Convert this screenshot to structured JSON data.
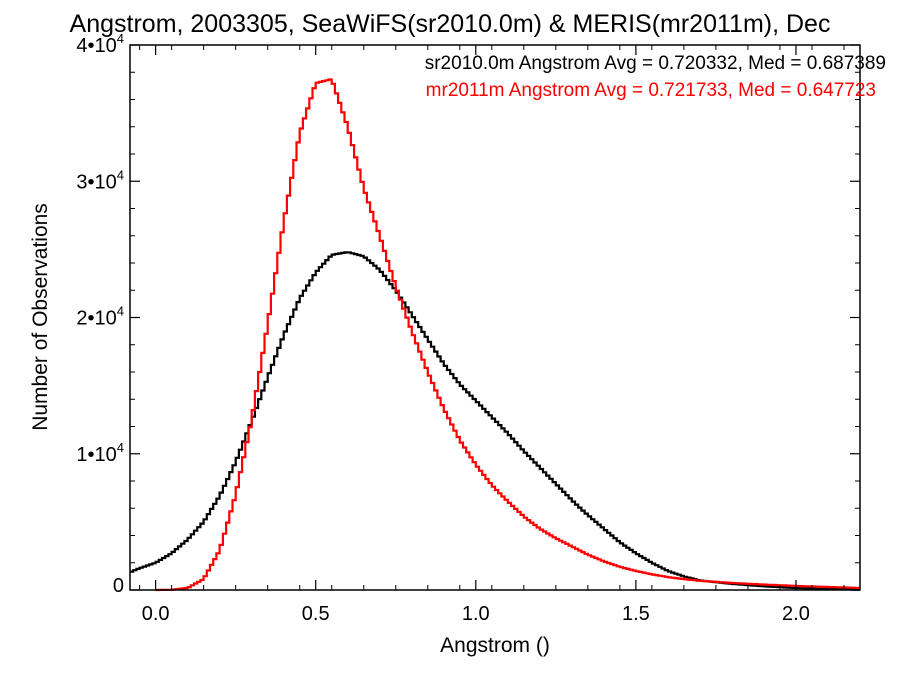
{
  "chart_data": {
    "type": "line",
    "title": "Angstrom, 2003305, SeaWiFS(sr2010.0m) & MERIS(mr2011m), Dec",
    "xlabel": "Angstrom ()",
    "ylabel": "Number of Observations",
    "xlim": [
      -0.08,
      2.2
    ],
    "ylim": [
      0,
      40000
    ],
    "x_ticks": [
      0.0,
      0.5,
      1.0,
      1.5,
      2.0
    ],
    "x_tick_labels": [
      "0.0",
      "0.5",
      "1.0",
      "1.5",
      "2.0"
    ],
    "y_ticks": [
      0,
      10000,
      20000,
      30000,
      40000
    ],
    "y_tick_labels": [
      {
        "base": "0",
        "exp": ""
      },
      {
        "base": "1•10",
        "exp": "4"
      },
      {
        "base": "2•10",
        "exp": "4"
      },
      {
        "base": "3•10",
        "exp": "4"
      },
      {
        "base": "4•10",
        "exp": "4"
      }
    ],
    "legend_position": "top-right",
    "series": [
      {
        "name": "sr2010.0m Angstrom Avg = 0.720332, Med = 0.687389",
        "color": "#000000",
        "x": [
          -0.08,
          -0.05,
          0.0,
          0.05,
          0.1,
          0.15,
          0.2,
          0.25,
          0.3,
          0.35,
          0.4,
          0.45,
          0.5,
          0.55,
          0.6,
          0.65,
          0.7,
          0.75,
          0.8,
          0.85,
          0.9,
          0.95,
          1.0,
          1.05,
          1.1,
          1.15,
          1.2,
          1.25,
          1.3,
          1.35,
          1.4,
          1.45,
          1.5,
          1.55,
          1.6,
          1.65,
          1.7,
          1.8,
          1.9,
          2.0,
          2.1,
          2.2
        ],
        "y": [
          1300,
          1600,
          2000,
          2700,
          3700,
          5000,
          6900,
          9400,
          12400,
          15600,
          18700,
          21400,
          23300,
          24600,
          24800,
          24500,
          23500,
          22000,
          20200,
          18400,
          16600,
          15100,
          13900,
          12700,
          11500,
          10200,
          9000,
          7800,
          6600,
          5500,
          4500,
          3500,
          2700,
          2000,
          1400,
          1000,
          700,
          450,
          270,
          140,
          70,
          30
        ]
      },
      {
        "name": "mr2011m Angstrom Avg = 0.721733, Med = 0.647723",
        "color": "#ff0000",
        "x": [
          0.0,
          0.05,
          0.1,
          0.15,
          0.2,
          0.25,
          0.3,
          0.35,
          0.4,
          0.45,
          0.5,
          0.55,
          0.6,
          0.65,
          0.7,
          0.75,
          0.8,
          0.85,
          0.9,
          0.95,
          1.0,
          1.05,
          1.1,
          1.15,
          1.2,
          1.25,
          1.3,
          1.35,
          1.4,
          1.45,
          1.5,
          1.55,
          1.6,
          1.65,
          1.7,
          1.8,
          1.9,
          2.0,
          2.1,
          2.2
        ],
        "y": [
          0,
          20,
          150,
          800,
          2900,
          7000,
          12500,
          19500,
          27000,
          33500,
          37200,
          37500,
          34000,
          29500,
          26000,
          22300,
          19000,
          16000,
          13300,
          11000,
          9200,
          7700,
          6500,
          5400,
          4500,
          3800,
          3200,
          2600,
          2100,
          1700,
          1400,
          1150,
          950,
          800,
          680,
          520,
          400,
          300,
          220,
          150
        ]
      }
    ]
  }
}
